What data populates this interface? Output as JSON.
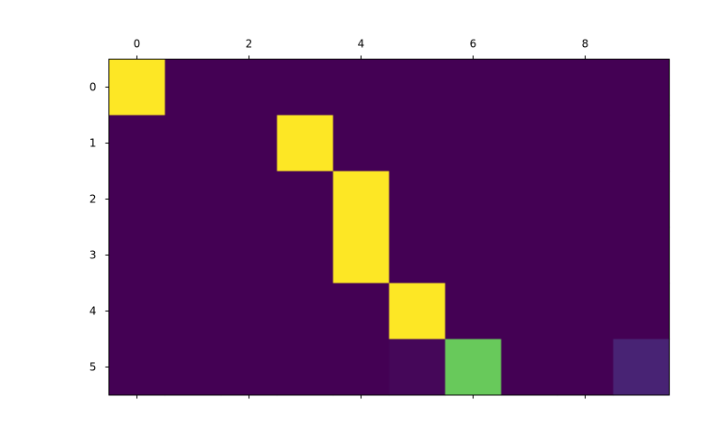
{
  "chart_data": {
    "type": "heatmap",
    "title": "",
    "xlabel": "",
    "ylabel": "",
    "colormap": "viridis",
    "n_rows": 6,
    "n_cols": 10,
    "x_axis_position": "top",
    "x_ticks": [
      "0",
      "2",
      "4",
      "6",
      "8"
    ],
    "y_ticks": [
      "0",
      "1",
      "2",
      "3",
      "4",
      "5"
    ],
    "grid": false,
    "values": [
      [
        1.0,
        0,
        0,
        0,
        0,
        0,
        0,
        0,
        0,
        0
      ],
      [
        0,
        0,
        0,
        1.0,
        0,
        0,
        0,
        0,
        0,
        0
      ],
      [
        0,
        0,
        0,
        0,
        1.0,
        0,
        0,
        0,
        0,
        0
      ],
      [
        0,
        0,
        0,
        0,
        1.0,
        0,
        0,
        0,
        0,
        0
      ],
      [
        0,
        0,
        0,
        0,
        0,
        1.0,
        0,
        0,
        0,
        0
      ],
      [
        0,
        0,
        0,
        0,
        0,
        0.02,
        0.85,
        0,
        0,
        0.12
      ]
    ]
  }
}
